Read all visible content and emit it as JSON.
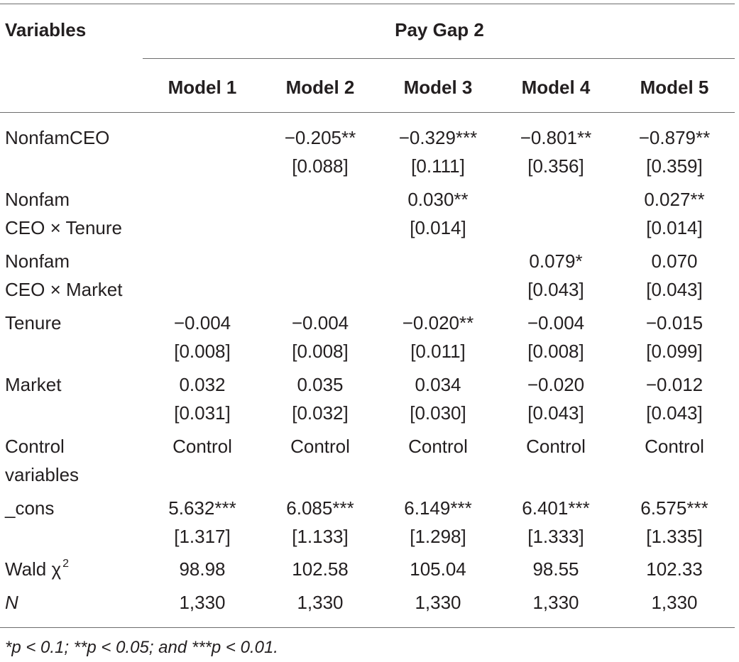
{
  "header": {
    "variables_label": "Variables",
    "group_title": "Pay Gap 2",
    "models": [
      "Model 1",
      "Model 2",
      "Model 3",
      "Model 4",
      "Model 5"
    ]
  },
  "rows": [
    {
      "label": [
        "NonfamCEO"
      ],
      "cells": [
        [
          "",
          ""
        ],
        [
          "−0.205**",
          "[0.088]"
        ],
        [
          "−0.329***",
          "[0.111]"
        ],
        [
          "−0.801**",
          "[0.356]"
        ],
        [
          "−0.879**",
          "[0.359]"
        ]
      ]
    },
    {
      "label": [
        "Nonfam",
        "CEO × Tenure"
      ],
      "cells": [
        [
          "",
          ""
        ],
        [
          "",
          ""
        ],
        [
          "0.030**",
          "[0.014]"
        ],
        [
          "",
          ""
        ],
        [
          "0.027**",
          "[0.014]"
        ]
      ]
    },
    {
      "label": [
        "Nonfam",
        "CEO × Market"
      ],
      "cells": [
        [
          "",
          ""
        ],
        [
          "",
          ""
        ],
        [
          "",
          ""
        ],
        [
          "0.079*",
          "[0.043]"
        ],
        [
          "0.070",
          "[0.043]"
        ]
      ]
    },
    {
      "label": [
        "Tenure"
      ],
      "cells": [
        [
          "−0.004",
          "[0.008]"
        ],
        [
          "−0.004",
          "[0.008]"
        ],
        [
          "−0.020**",
          "[0.011]"
        ],
        [
          "−0.004",
          "[0.008]"
        ],
        [
          "−0.015",
          "[0.099]"
        ]
      ]
    },
    {
      "label": [
        "Market"
      ],
      "cells": [
        [
          "0.032",
          "[0.031]"
        ],
        [
          "0.035",
          "[0.032]"
        ],
        [
          "0.034",
          "[0.030]"
        ],
        [
          "−0.020",
          "[0.043]"
        ],
        [
          "−0.012",
          "[0.043]"
        ]
      ]
    },
    {
      "label": [
        "Control",
        "variables"
      ],
      "cells": [
        [
          "Control",
          ""
        ],
        [
          "Control",
          ""
        ],
        [
          "Control",
          ""
        ],
        [
          "Control",
          ""
        ],
        [
          "Control",
          ""
        ]
      ]
    },
    {
      "label": [
        "_cons"
      ],
      "cells": [
        [
          "5.632***",
          "[1.317]"
        ],
        [
          "6.085***",
          "[1.133]"
        ],
        [
          "6.149***",
          "[1.298]"
        ],
        [
          "6.401***",
          "[1.333]"
        ],
        [
          "6.575***",
          "[1.335]"
        ]
      ]
    }
  ],
  "wald": {
    "label": "Wald χ",
    "sup": "2",
    "values": [
      "98.98",
      "102.58",
      "105.04",
      "98.55",
      "102.33"
    ]
  },
  "n_row": {
    "label": "N",
    "values": [
      "1,330",
      "1,330",
      "1,330",
      "1,330",
      "1,330"
    ]
  },
  "footnote": "*p < 0.1; **p < 0.05; and ***p < 0.01."
}
